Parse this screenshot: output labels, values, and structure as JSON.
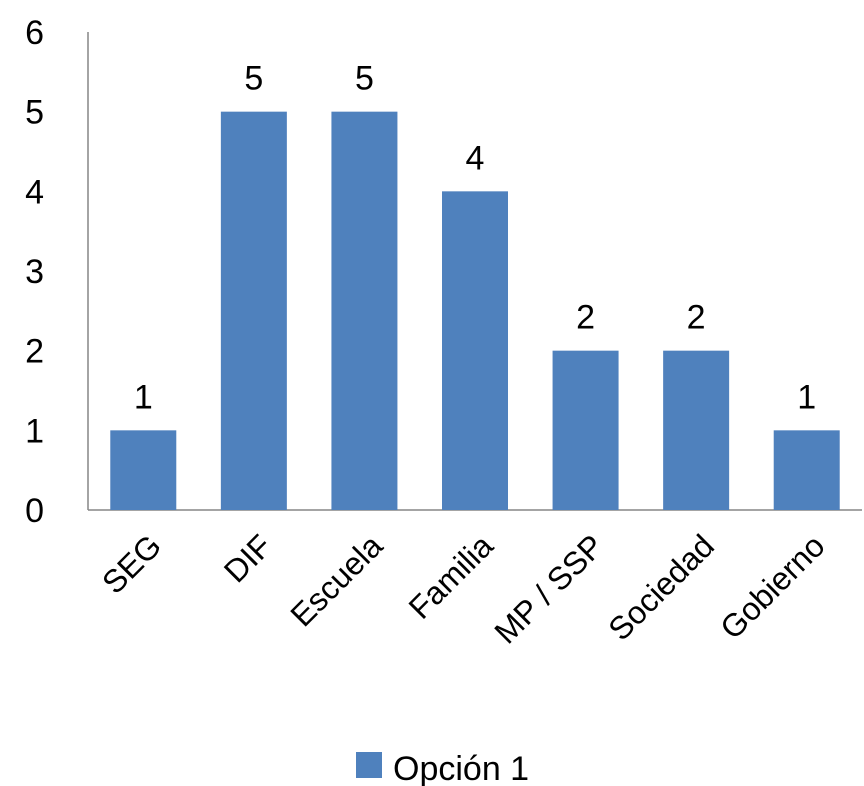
{
  "chart_data": {
    "type": "bar",
    "title": "",
    "xlabel": "",
    "ylabel": "",
    "categories": [
      "SEG",
      "DIF",
      "Escuela",
      "Familia",
      "MP / SSP",
      "Sociedad",
      "Gobierno"
    ],
    "series": [
      {
        "name": "Opción 1",
        "color": "#4F81BD",
        "values": [
          1,
          5,
          5,
          4,
          2,
          2,
          1
        ]
      }
    ],
    "y_ticks": [
      "0",
      "1",
      "2",
      "3",
      "4",
      "5",
      "6"
    ],
    "ylim": [
      0,
      6
    ],
    "grid": false,
    "data_labels": true,
    "legend": {
      "position": "bottom"
    }
  }
}
